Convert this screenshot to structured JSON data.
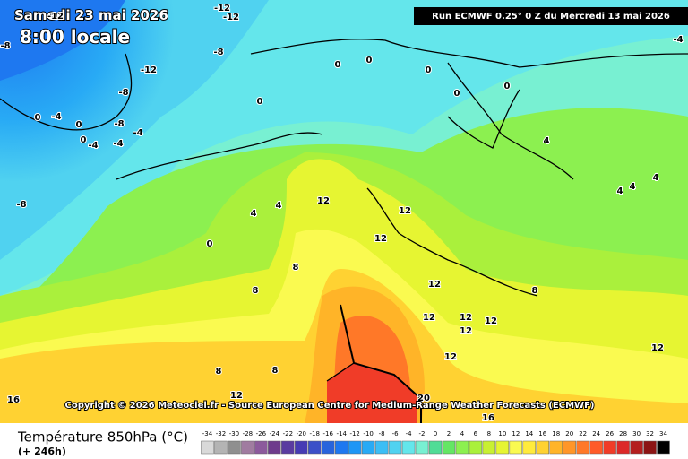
{
  "header": {
    "date": "Samedi 23 mai 2026",
    "time": "8:00 locale",
    "run": "Run ECMWF 0.25° 0 Z du Mercredi 13 mai 2026",
    "copyright": "Copyright © 2026 Meteociel.fr - Source European Centre for Medium-Range Weather Forecasts (ECMWF)"
  },
  "footer": {
    "title": "Température 850hPa (°C)",
    "lead": "(+ 246h)"
  },
  "legend": {
    "values": [
      -34,
      -32,
      -30,
      -28,
      -26,
      -24,
      -22,
      -20,
      -18,
      -16,
      -14,
      -12,
      -10,
      -8,
      -6,
      -4,
      -2,
      0,
      2,
      4,
      6,
      8,
      10,
      12,
      14,
      16,
      18,
      20,
      22,
      24,
      26,
      28,
      30,
      32,
      34
    ],
    "colors": [
      "#d9d9d9",
      "#b4b4b4",
      "#8f8f8f",
      "#a07ca0",
      "#8c5a9c",
      "#6e3c8c",
      "#5a3ca0",
      "#463cb4",
      "#3c50c8",
      "#2864dc",
      "#1e78f0",
      "#1e96f5",
      "#28aaf5",
      "#3cbef5",
      "#50d2f0",
      "#64e6eb",
      "#78f0d2",
      "#50dc96",
      "#64e664",
      "#8cf050",
      "#aaf03c",
      "#c8f032",
      "#e6f532",
      "#fafa50",
      "#ffeb3c",
      "#ffd232",
      "#ffb428",
      "#ff9628",
      "#ff7828",
      "#ff5a28",
      "#f03c28",
      "#dc2828",
      "#b41e1e",
      "#8c1414",
      "#000000"
    ]
  },
  "contour_labels": [
    -12,
    -12,
    -12,
    -8,
    -8,
    -12,
    -8,
    -4,
    0,
    0,
    -8,
    -4,
    0,
    -4,
    -4,
    0,
    0,
    0,
    0,
    0,
    0,
    -4,
    4,
    4,
    4,
    4,
    -8,
    4,
    4,
    0,
    12,
    12,
    12,
    8,
    8,
    12,
    12,
    12,
    12,
    8,
    12,
    8,
    8,
    12,
    12,
    12,
    16,
    20,
    16
  ]
}
